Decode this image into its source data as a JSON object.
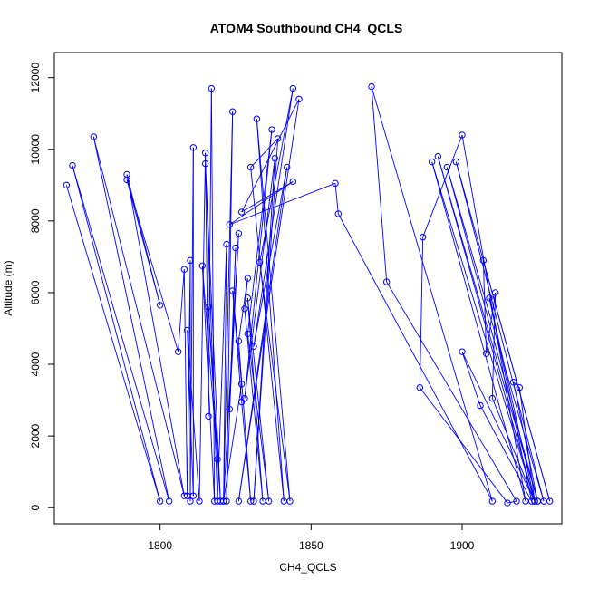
{
  "chart_data": {
    "type": "line",
    "title": "ATOM4 Southbound CH4_QCLS",
    "xlabel": "CH4_QCLS",
    "ylabel": "Altitude (m)",
    "xlim": [
      1765,
      1933
    ],
    "ylim": [
      -450,
      12700
    ],
    "x_ticks": [
      1800,
      1850,
      1900
    ],
    "y_ticks": [
      0,
      2000,
      4000,
      6000,
      8000,
      10000,
      12000
    ],
    "series_color": "#0000ff",
    "marker": "open-circle",
    "grid": false,
    "legend": "none",
    "x": [
      1769,
      1800,
      1771,
      1803,
      1778,
      1808,
      1789,
      1800,
      1789,
      1806,
      1808,
      1809,
      1810,
      1810,
      1811,
      1811,
      1809,
      1813,
      1815,
      1816,
      1817,
      1818,
      1814,
      1819,
      1816,
      1820,
      1815,
      1819,
      1822,
      1821,
      1824,
      1822,
      1825,
      1823,
      1826,
      1821,
      1827,
      1824,
      1827,
      1830,
      1826,
      1829,
      1828,
      1834,
      1829,
      1836,
      1829,
      1837,
      1828,
      1838,
      1831,
      1839,
      1830,
      1841,
      1832,
      1843,
      1833,
      1844,
      1831,
      1842,
      1826,
      1846,
      1827,
      1844,
      1823,
      1858,
      1859,
      1910,
      1870,
      1875,
      1918,
      1915,
      1886,
      1887,
      1900,
      1921,
      1890,
      1924,
      1892,
      1925,
      1895,
      1927,
      1898,
      1929,
      1907,
      1908,
      1911,
      1910,
      1924,
      1909,
      1923,
      1906,
      1900,
      1924,
      1919,
      1917,
      1925
    ],
    "y": [
      9000,
      180,
      9550,
      180,
      10350,
      330,
      9300,
      5650,
      9150,
      4350,
      6650,
      330,
      6900,
      180,
      10050,
      330,
      4950,
      180,
      9900,
      2550,
      11700,
      180,
      6750,
      1350,
      5600,
      180,
      9600,
      180,
      7350,
      180,
      11050,
      180,
      7250,
      2750,
      7650,
      180,
      3450,
      6050,
      2950,
      180,
      4650,
      6400,
      5550,
      180,
      5850,
      180,
      4850,
      10550,
      3050,
      9750,
      180,
      10300,
      9500,
      180,
      10850,
      180,
      6850,
      11700,
      4500,
      9500,
      180,
      11400,
      8250,
      9100,
      7900,
      9050,
      8200,
      180,
      11750,
      6300,
      180,
      130,
      3350,
      7550,
      10400,
      180,
      9650,
      180,
      9800,
      180,
      9500,
      180,
      9650,
      180,
      6900,
      4300,
      6000,
      3050,
      180,
      5850,
      180,
      2850,
      4350,
      180,
      3350,
      3500,
      180
    ]
  }
}
